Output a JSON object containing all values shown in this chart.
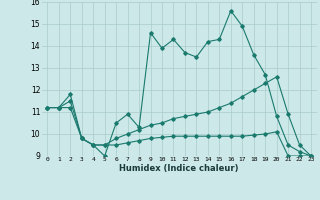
{
  "xlabel": "Humidex (Indice chaleur)",
  "ylabel": "",
  "bg_color": "#cce8e8",
  "line_color": "#1a7a6e",
  "grid_color": "#aacccc",
  "xlim": [
    -0.5,
    23.5
  ],
  "ylim": [
    9,
    16
  ],
  "xticks": [
    0,
    1,
    2,
    3,
    4,
    5,
    6,
    7,
    8,
    9,
    10,
    11,
    12,
    13,
    14,
    15,
    16,
    17,
    18,
    19,
    20,
    21,
    22,
    23
  ],
  "yticks": [
    9,
    10,
    11,
    12,
    13,
    14,
    15,
    16
  ],
  "series": [
    [
      11.2,
      11.2,
      11.8,
      9.8,
      9.5,
      9.0,
      10.5,
      10.9,
      10.3,
      14.6,
      13.9,
      14.3,
      13.7,
      13.5,
      14.2,
      14.3,
      15.6,
      14.9,
      13.6,
      12.7,
      10.8,
      9.5,
      9.2,
      9.0
    ],
    [
      11.2,
      11.2,
      11.5,
      9.8,
      9.5,
      9.5,
      9.8,
      10.0,
      10.2,
      10.4,
      10.5,
      10.7,
      10.8,
      10.9,
      11.0,
      11.2,
      11.4,
      11.7,
      12.0,
      12.3,
      12.6,
      10.9,
      9.5,
      9.0
    ],
    [
      11.2,
      11.2,
      11.2,
      9.8,
      9.5,
      9.5,
      9.5,
      9.6,
      9.7,
      9.8,
      9.85,
      9.9,
      9.9,
      9.9,
      9.9,
      9.9,
      9.9,
      9.9,
      9.95,
      10.0,
      10.1,
      9.0,
      9.0,
      9.0
    ]
  ]
}
